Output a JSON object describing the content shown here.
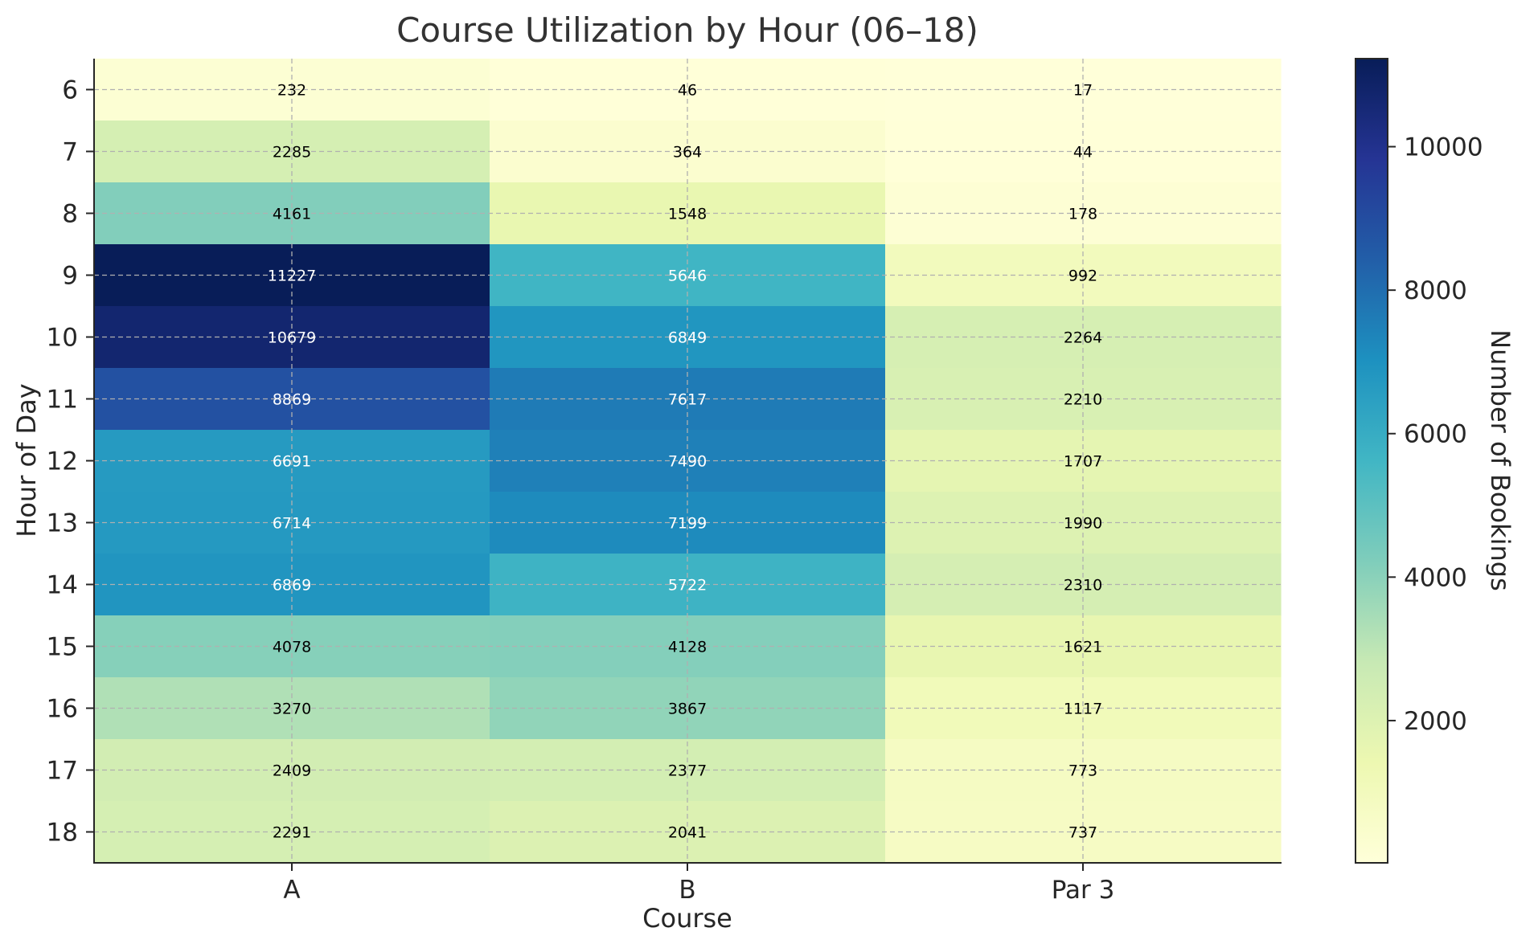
{
  "chart_data": {
    "type": "heatmap",
    "title": "Course Utilization by Hour (06–18)",
    "xlabel": "Course",
    "ylabel": "Hour of Day",
    "colorbar_label": "Number of Bookings",
    "colormap": "YlGnBu",
    "x_categories": [
      "A",
      "B",
      "Par 3"
    ],
    "y_categories": [
      "6",
      "7",
      "8",
      "9",
      "10",
      "11",
      "12",
      "13",
      "14",
      "15",
      "16",
      "17",
      "18"
    ],
    "values": [
      [
        232,
        46,
        17
      ],
      [
        2285,
        364,
        44
      ],
      [
        4161,
        1548,
        178
      ],
      [
        11227,
        5646,
        992
      ],
      [
        10679,
        6849,
        2264
      ],
      [
        8869,
        7617,
        2210
      ],
      [
        6691,
        7490,
        1707
      ],
      [
        6714,
        7199,
        1990
      ],
      [
        6869,
        5722,
        2310
      ],
      [
        4078,
        4128,
        1621
      ],
      [
        3270,
        3867,
        1117
      ],
      [
        2409,
        2377,
        773
      ],
      [
        2291,
        2041,
        737
      ]
    ],
    "value_range": [
      17,
      11227
    ],
    "colorbar_ticks": [
      "2000",
      "4000",
      "6000",
      "8000",
      "10000"
    ],
    "grid": true
  }
}
